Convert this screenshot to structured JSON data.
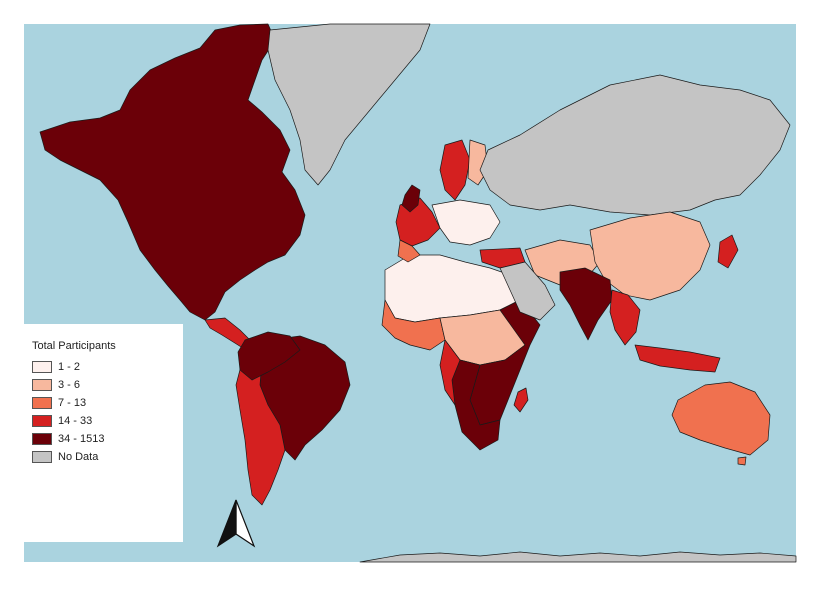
{
  "colors": {
    "ocean": "#aad3df",
    "no_data": "#c4c4c4",
    "border": "#1a1a1a",
    "c1": "#fdf0ed",
    "c2": "#f7b89e",
    "c3": "#f0714f",
    "c4": "#d42020",
    "c5": "#6b0008"
  },
  "legend": {
    "title": "Total Participants",
    "items": [
      {
        "label": "1 - 2",
        "color": "#fdf0ed"
      },
      {
        "label": "3 - 6",
        "color": "#f7b89e"
      },
      {
        "label": "7 - 13",
        "color": "#f0714f"
      },
      {
        "label": "14 - 33",
        "color": "#d42020"
      },
      {
        "label": "34 - 1513",
        "color": "#6b0008"
      },
      {
        "label": "No Data",
        "color": "#c4c4c4"
      }
    ]
  },
  "north_arrow": "north-arrow-icon"
}
